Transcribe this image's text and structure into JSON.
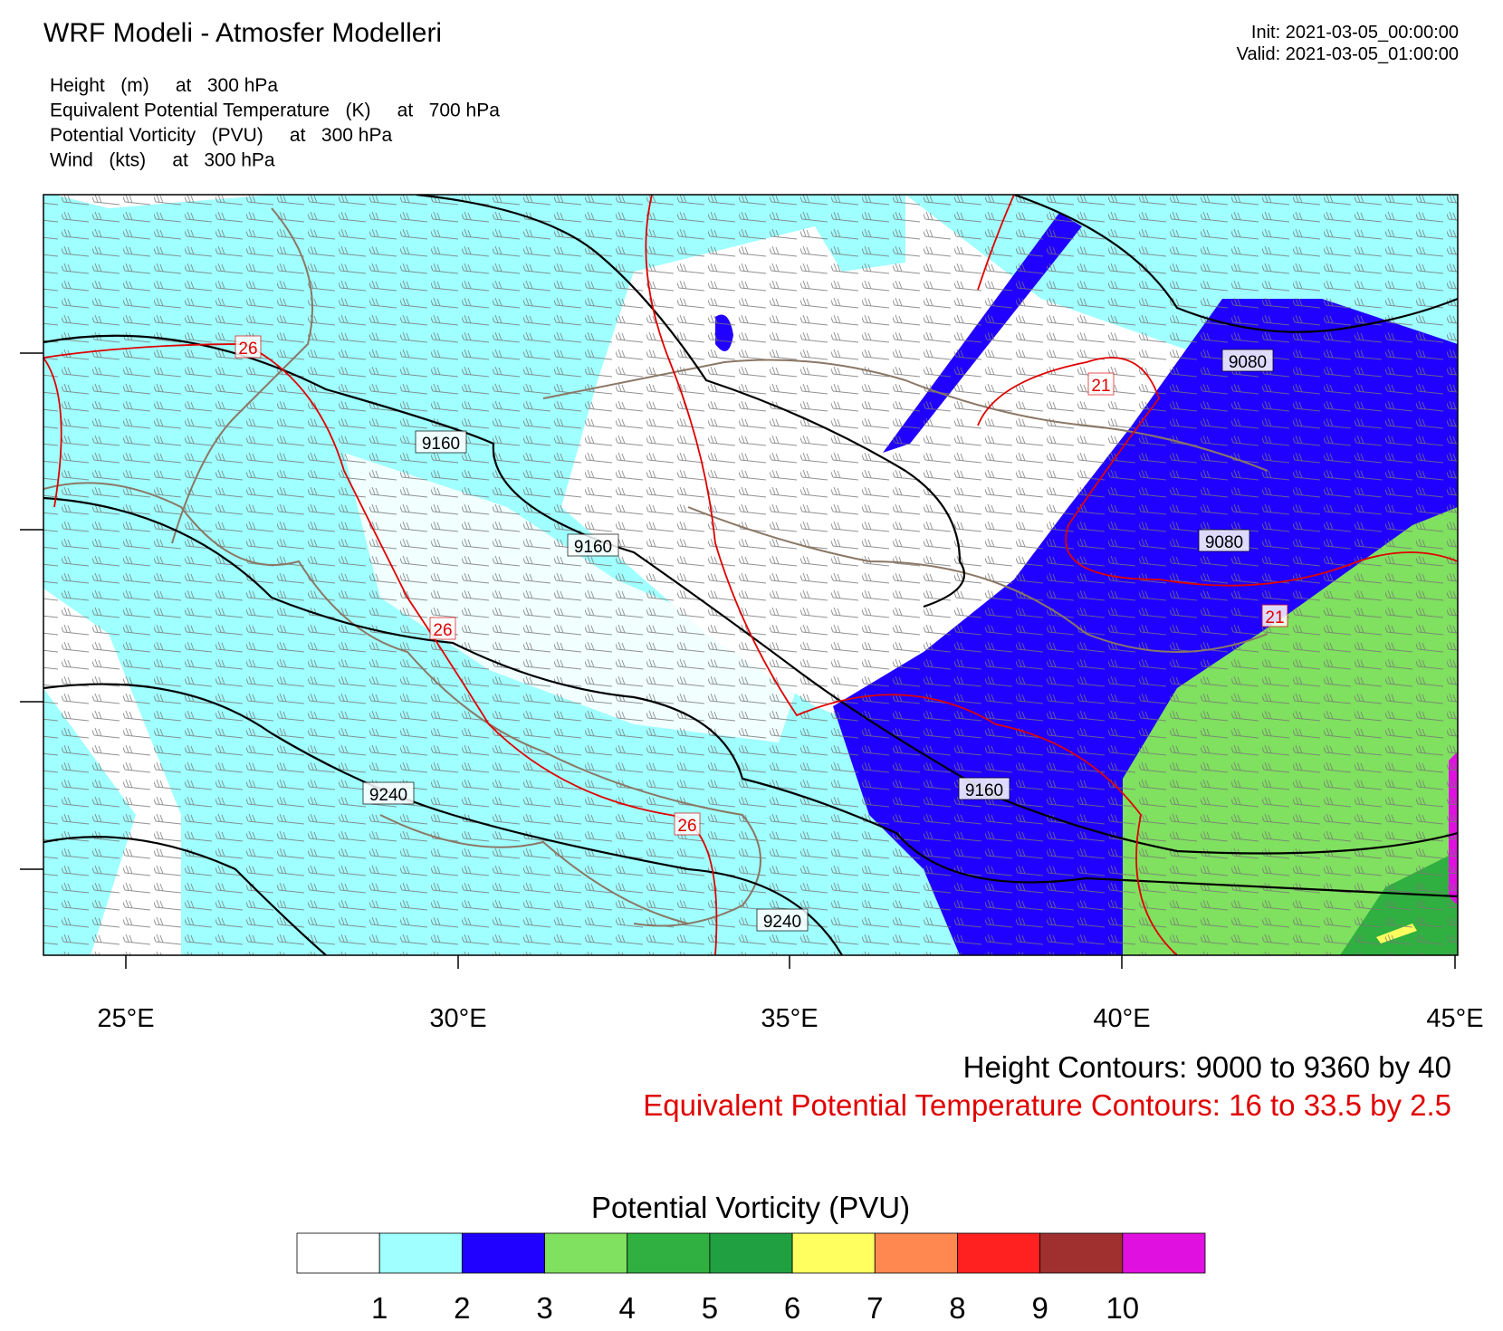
{
  "header": {
    "title": "WRF Modeli - Atmosfer Modelleri",
    "init": "Init: 2021-03-05_00:00:00",
    "valid": "Valid: 2021-03-05_01:00:00",
    "fields": [
      "Height   (m)     at   300 hPa",
      "Equivalent Potential Temperature   (K)     at   700 hPa",
      "Potential Vorticity   (PVU)     at   300 hPa",
      "Wind   (kts)     at   300 hPa"
    ]
  },
  "map": {
    "x_labels": [
      "25°E",
      "30°E",
      "35°E",
      "40°E",
      "45°E"
    ],
    "height_labels": [
      "9160",
      "9160",
      "9240",
      "9240",
      "9160",
      "9080",
      "9080"
    ],
    "theta_labels": [
      "26",
      "26",
      "26",
      "21",
      "21"
    ]
  },
  "notes": [
    "Height Contours: 9000 to 9360 by 40",
    "Equivalent Potential Temperature Contours: 16 to 33.5 by 2.5"
  ],
  "colorbar": {
    "title": "Potential Vorticity  (PVU)",
    "colors": [
      "#ffffff",
      "#a0ffff",
      "#2000ff",
      "#80e060",
      "#30b040",
      "#20a040",
      "#ffff60",
      "#ff8850",
      "#ff2020",
      "#a03030",
      "#e010e0"
    ],
    "ticks": [
      1,
      2,
      3,
      4,
      5,
      6,
      7,
      8,
      9,
      10
    ]
  }
}
